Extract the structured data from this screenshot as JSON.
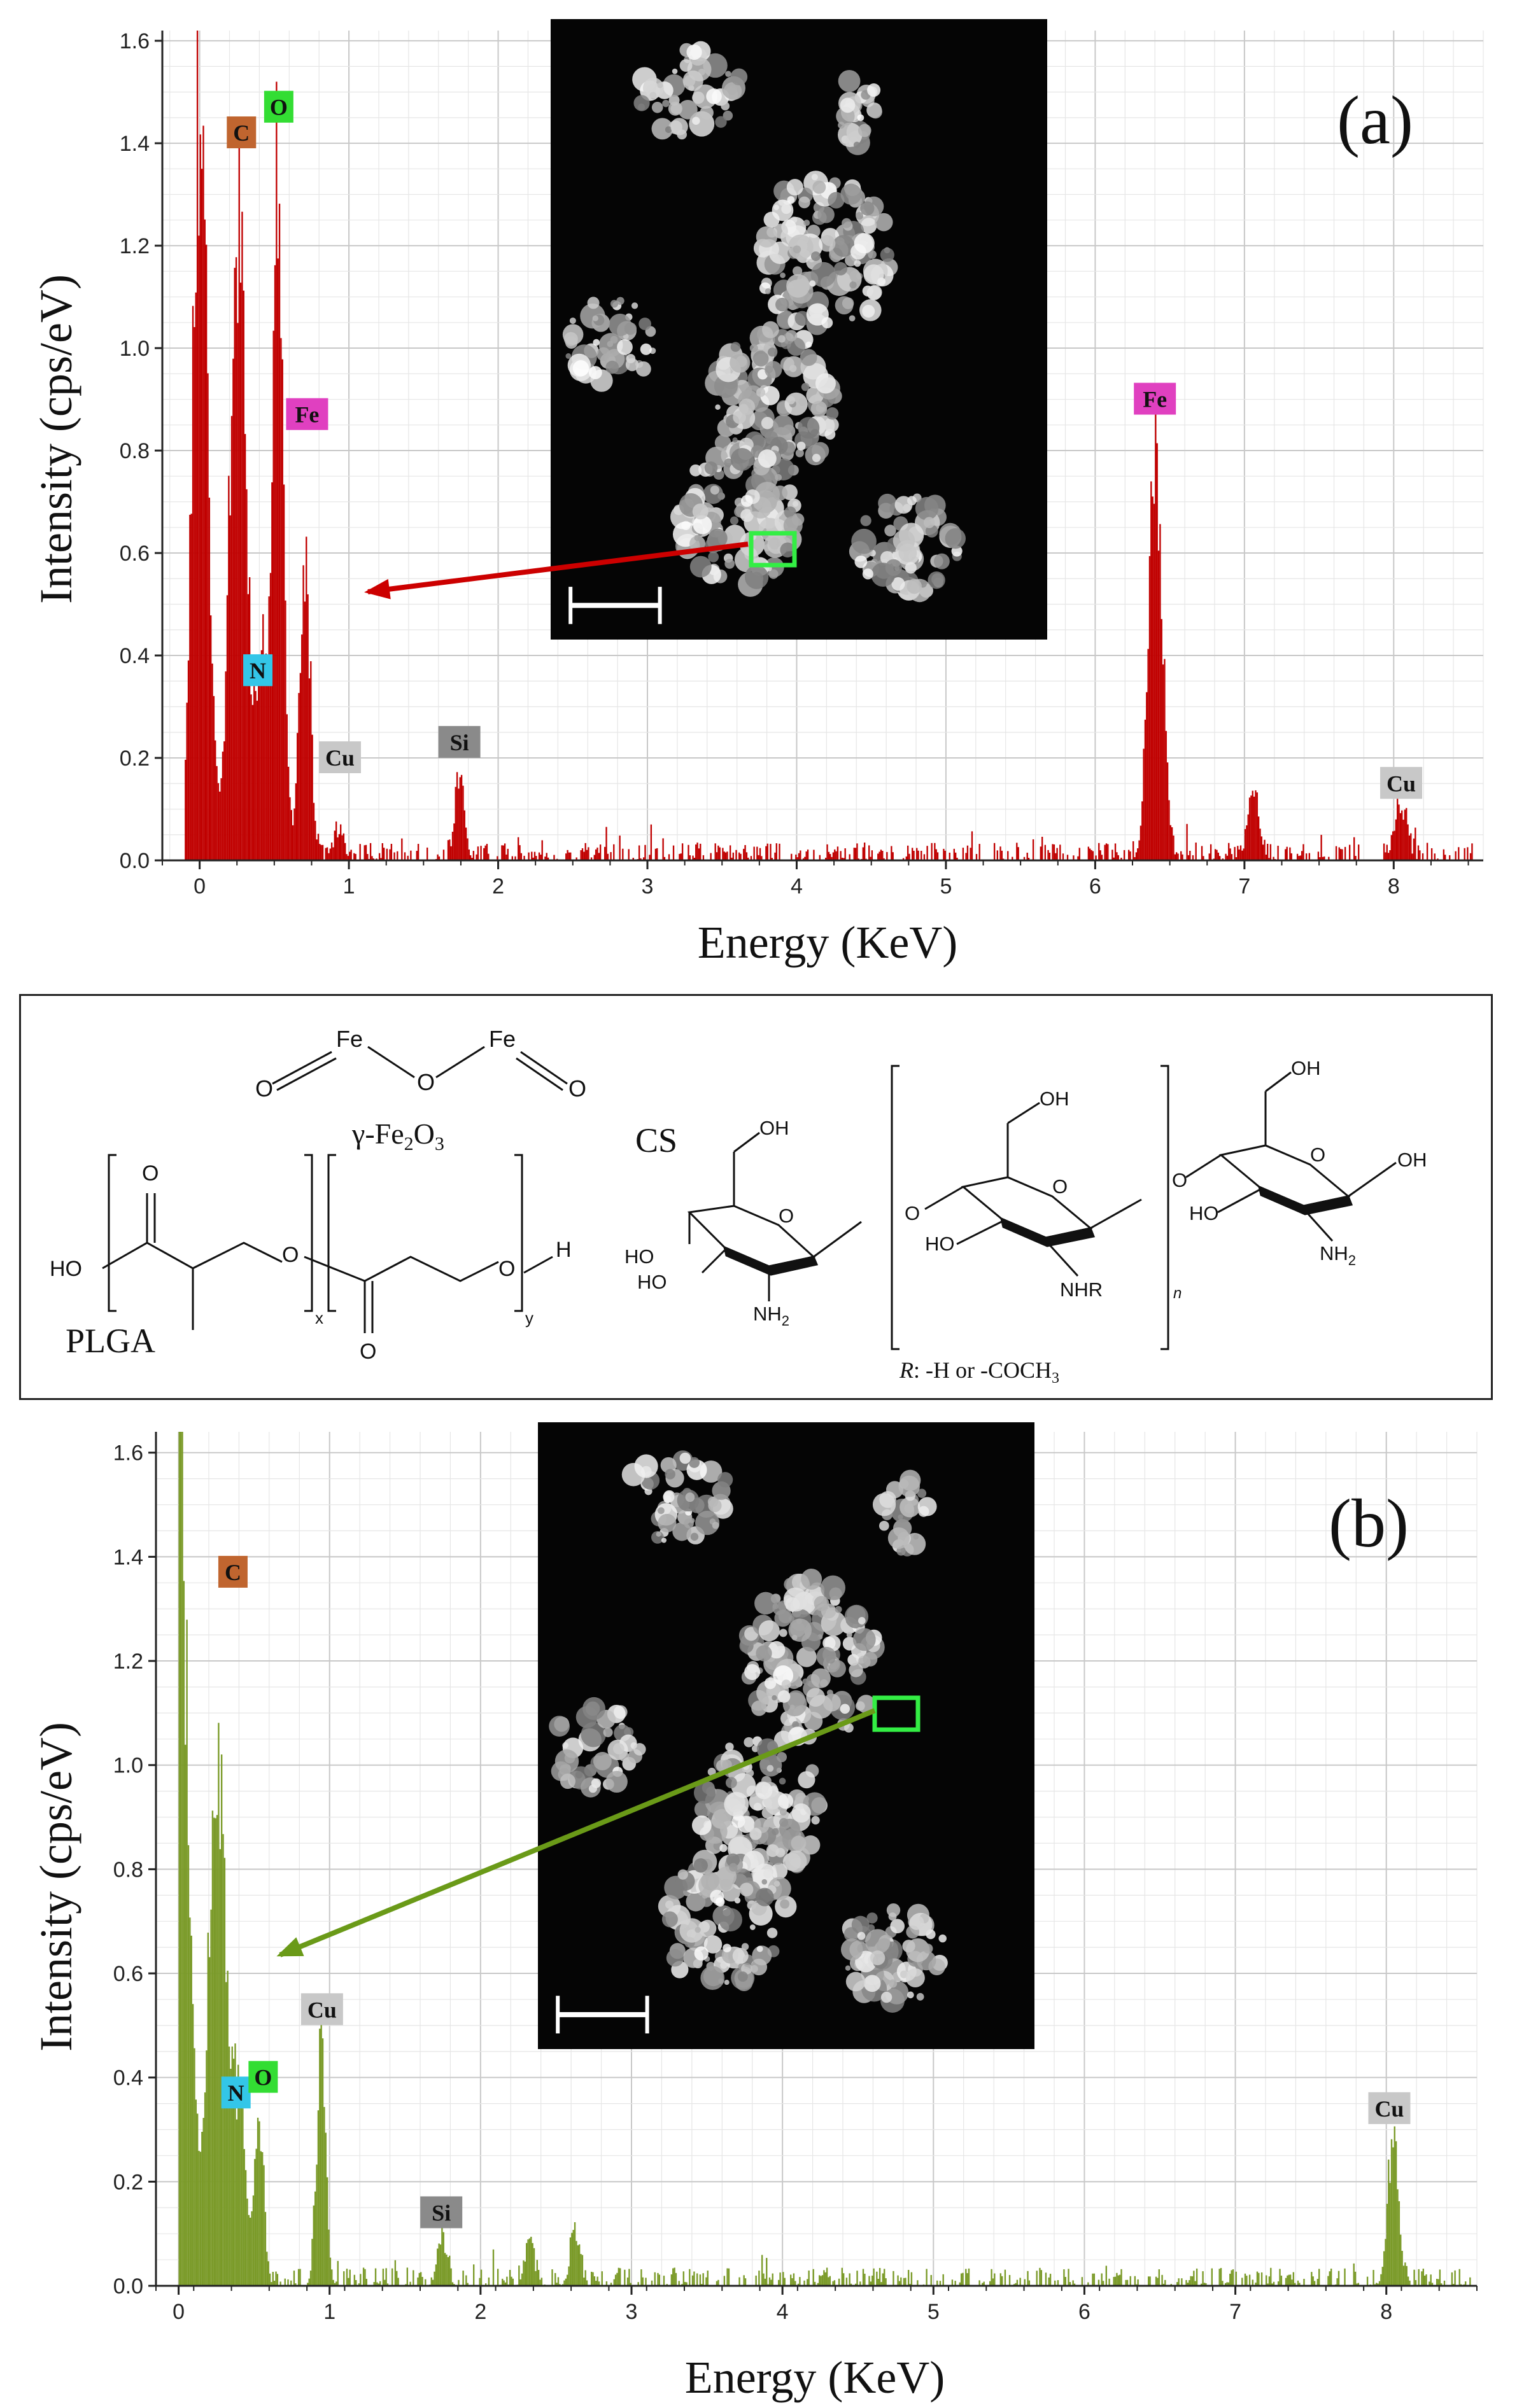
{
  "chart_data": [
    {
      "type": "bar",
      "panel_label": "(a)",
      "xlabel": "Energy (KeV)",
      "ylabel": "Intensity (cps/eV)",
      "xlim": [
        -0.25,
        8.6
      ],
      "ylim": [
        0,
        1.62
      ],
      "xticks": [
        0,
        1,
        2,
        3,
        4,
        5,
        6,
        7,
        8
      ],
      "yticks": [
        "0.0",
        "0.2",
        "0.4",
        "0.6",
        "0.8",
        "1.0",
        "1.2",
        "1.4",
        "1.6"
      ],
      "grid": true,
      "color": "#c00000",
      "peaks": [
        {
          "x": 0.0,
          "y": 1.62,
          "w": 0.05
        },
        {
          "x": 0.25,
          "y": 1.38,
          "w": 0.05
        },
        {
          "x": 0.52,
          "y": 1.4,
          "w": 0.035
        },
        {
          "x": 0.41,
          "y": 0.38,
          "w": 0.05
        },
        {
          "x": 0.7,
          "y": 0.64,
          "w": 0.035
        },
        {
          "x": 0.93,
          "y": 0.06,
          "w": 0.03
        },
        {
          "x": 1.74,
          "y": 0.19,
          "w": 0.03
        },
        {
          "x": 6.4,
          "y": 0.86,
          "w": 0.045
        },
        {
          "x": 7.06,
          "y": 0.15,
          "w": 0.035
        },
        {
          "x": 8.04,
          "y": 0.12,
          "w": 0.04
        }
      ],
      "element_labels": [
        {
          "text": "C",
          "x": 0.28,
          "y": 1.42,
          "color": "#c0652f"
        },
        {
          "text": "O",
          "x": 0.53,
          "y": 1.47,
          "color": "#33dd33"
        },
        {
          "text": "Fe",
          "x": 0.72,
          "y": 0.87,
          "color": "#e040c0"
        },
        {
          "text": "N",
          "x": 0.39,
          "y": 0.37,
          "color": "#33c6e8"
        },
        {
          "text": "Cu",
          "x": 0.94,
          "y": 0.2,
          "color": "#c8c8c8"
        },
        {
          "text": "Si",
          "x": 1.74,
          "y": 0.23,
          "color": "#8a8a8a"
        },
        {
          "text": "Fe",
          "x": 6.4,
          "y": 0.9,
          "color": "#e040c0"
        },
        {
          "text": "Cu",
          "x": 8.05,
          "y": 0.15,
          "color": "#c8c8c8"
        }
      ],
      "arrow_color": "#cc0000"
    },
    {
      "type": "bar",
      "panel_label": "(b)",
      "xlabel": "Energy (KeV)",
      "ylabel": "Intensity (cps/eV)",
      "xlim": [
        -0.15,
        8.6
      ],
      "ylim": [
        0,
        1.64
      ],
      "xticks": [
        0,
        1,
        2,
        3,
        4,
        5,
        6,
        7,
        8
      ],
      "yticks": [
        "0.0",
        "0.2",
        "0.4",
        "0.6",
        "0.8",
        "1.0",
        "1.2",
        "1.4",
        "1.6"
      ],
      "grid": true,
      "color": "#7a9a28",
      "peaks": [
        {
          "x": 0.0,
          "y": 1.64,
          "w": 0.06
        },
        {
          "x": 0.25,
          "y": 1.1,
          "w": 0.06
        },
        {
          "x": 0.4,
          "y": 0.36,
          "w": 0.04
        },
        {
          "x": 0.53,
          "y": 0.33,
          "w": 0.03
        },
        {
          "x": 0.94,
          "y": 0.48,
          "w": 0.03
        },
        {
          "x": 1.74,
          "y": 0.1,
          "w": 0.03
        },
        {
          "x": 2.32,
          "y": 0.09,
          "w": 0.03
        },
        {
          "x": 2.62,
          "y": 0.11,
          "w": 0.03
        },
        {
          "x": 8.04,
          "y": 0.3,
          "w": 0.035
        }
      ],
      "element_labels": [
        {
          "text": "C",
          "x": 0.36,
          "y": 1.37,
          "color": "#c0652f"
        },
        {
          "text": "N",
          "x": 0.38,
          "y": 0.37,
          "color": "#33c6e8"
        },
        {
          "text": "O",
          "x": 0.56,
          "y": 0.4,
          "color": "#33dd33"
        },
        {
          "text": "Cu",
          "x": 0.95,
          "y": 0.53,
          "color": "#c8c8c8"
        },
        {
          "text": "Si",
          "x": 1.74,
          "y": 0.14,
          "color": "#8a8a8a"
        },
        {
          "text": "Cu",
          "x": 8.02,
          "y": 0.34,
          "color": "#c8c8c8"
        }
      ],
      "arrow_color": "#6a9a18"
    }
  ],
  "structures": {
    "fe2o3": {
      "fe_left": "Fe",
      "fe_right": "Fe",
      "o_left": "O",
      "o_mid": "O",
      "o_right": "O",
      "caption_prefix": "γ-Fe",
      "caption_sub1": "2",
      "caption_mid": "O",
      "caption_sub2": "3"
    },
    "plga": {
      "label": "PLGA",
      "ho": "HO",
      "o1": "O",
      "o2": "O",
      "o3": "O",
      "o4": "O",
      "sub_x": "x",
      "sub_y": "y",
      "h": "H"
    },
    "cs": {
      "label": "CS",
      "oh1": "OH",
      "oh2": "OH",
      "oh3": "OH",
      "oh4": "OH",
      "ho1": "HO",
      "ho2": "HO",
      "ho3": "HO",
      "ho4": "HO",
      "nh2_1": "NH",
      "nh2_2": "NH",
      "nhr": "NHR",
      "sub2": "2",
      "o_ring": "O",
      "o_link1": "O",
      "o_link2": "O",
      "n_sub": "n",
      "r_caption_r": "R",
      "r_caption": ": -H or -COCH",
      "r_caption_sub": "3"
    }
  }
}
